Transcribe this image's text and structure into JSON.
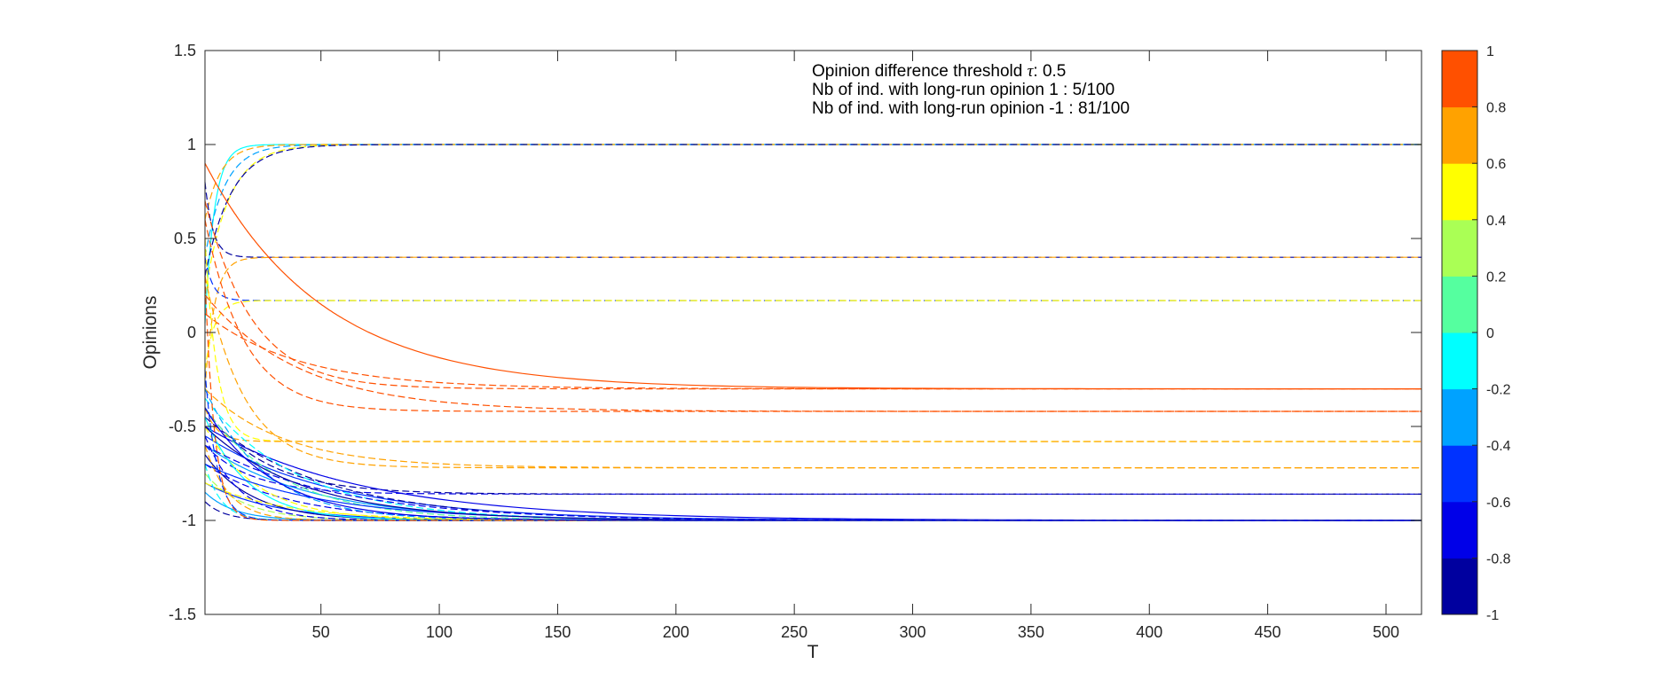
{
  "chart_data": {
    "type": "line",
    "xlabel": "T",
    "ylabel": "Opinions",
    "xlim": [
      1,
      515
    ],
    "ylim": [
      -1.5,
      1.5
    ],
    "xticks": [
      50,
      100,
      150,
      200,
      250,
      300,
      350,
      400,
      450,
      500
    ],
    "yticks": [
      -1.5,
      -1,
      -0.5,
      0,
      0.5,
      1,
      1.5
    ],
    "ytick_labels": [
      "-1.5",
      "-1",
      "-0.5",
      "0",
      "0.5",
      "1",
      "1.5"
    ],
    "annotations": {
      "threshold_prefix": "Opinion difference threshold ",
      "threshold_symbol": "τ",
      "threshold_suffix": ": 0.5",
      "line2": "Nb of ind. with long-run opinion 1 : 5/100",
      "line3": "Nb of ind. with long-run opinion -1 : 81/100"
    },
    "colorbar": {
      "range": [
        -1,
        1
      ],
      "tick_labels": [
        "1",
        "0.8",
        "0.6",
        "0.4",
        "0.2",
        "0",
        "-0.2",
        "-0.4",
        "-0.6",
        "-0.8",
        "-1"
      ],
      "colors": [
        "#00009f",
        "#0000e8",
        "#0032ff",
        "#00a2ff",
        "#00ffff",
        "#55ff9f",
        "#aaff55",
        "#ffff00",
        "#ffa200",
        "#ff5000"
      ]
    },
    "series": [
      {
        "start": 0.05,
        "end": 1.0,
        "rate": 0.25,
        "color": "#00ffff",
        "dash": false
      },
      {
        "start": 0.4,
        "end": 1.0,
        "rate": 0.12,
        "color": "#00a2ff",
        "dash": true
      },
      {
        "start": 0.2,
        "end": 1.0,
        "rate": 0.1,
        "color": "#ffff00",
        "dash": true
      },
      {
        "start": 0.6,
        "end": 1.0,
        "rate": 0.15,
        "color": "#ffa200",
        "dash": true
      },
      {
        "start": 0.3,
        "end": 1.0,
        "rate": 0.09,
        "color": "#00009f",
        "dash": true
      },
      {
        "start": 0.8,
        "end": 0.4,
        "rate": 0.3,
        "color": "#00009f",
        "dash": true
      },
      {
        "start": -0.3,
        "end": 0.4,
        "rate": 0.25,
        "color": "#ffa200",
        "dash": true
      },
      {
        "start": 0.4,
        "end": 0.17,
        "rate": 0.3,
        "color": "#0032ff",
        "dash": true
      },
      {
        "start": -0.2,
        "end": 0.17,
        "rate": 0.25,
        "color": "#ffff00",
        "dash": true
      },
      {
        "start": 0.9,
        "end": -0.3,
        "rate": 0.02,
        "color": "#ff5000",
        "dash": false
      },
      {
        "start": 0.1,
        "end": -0.3,
        "rate": 0.025,
        "color": "#ff5000",
        "dash": true
      },
      {
        "start": 0.7,
        "end": -0.3,
        "rate": 0.05,
        "color": "#ff5000",
        "dash": true
      },
      {
        "start": 0.2,
        "end": -0.42,
        "rate": 0.025,
        "color": "#ff5000",
        "dash": true
      },
      {
        "start": 0.6,
        "end": -0.42,
        "rate": 0.06,
        "color": "#ff5000",
        "dash": true
      },
      {
        "start": 0.5,
        "end": -0.58,
        "rate": 0.2,
        "color": "#ffff00",
        "dash": true
      },
      {
        "start": -0.4,
        "end": -0.58,
        "rate": 0.2,
        "color": "#ffa200",
        "dash": true
      },
      {
        "start": -0.3,
        "end": -0.72,
        "rate": 0.03,
        "color": "#ffa200",
        "dash": true
      },
      {
        "start": 0.3,
        "end": -0.72,
        "rate": 0.06,
        "color": "#ffa200",
        "dash": true
      },
      {
        "start": -0.6,
        "end": -0.86,
        "rate": 0.05,
        "color": "#0000e8",
        "dash": true
      },
      {
        "start": -0.4,
        "end": -0.86,
        "rate": 0.04,
        "color": "#00009f",
        "dash": true
      },
      {
        "start": -0.5,
        "end": -1.0,
        "rate": 0.015,
        "color": "#0000e8",
        "dash": false
      },
      {
        "start": -0.55,
        "end": -1.0,
        "rate": 0.018,
        "color": "#0032ff",
        "dash": false
      },
      {
        "start": -0.45,
        "end": -1.0,
        "rate": 0.02,
        "color": "#00009f",
        "dash": true
      },
      {
        "start": -0.6,
        "end": -1.0,
        "rate": 0.022,
        "color": "#00a2ff",
        "dash": false
      },
      {
        "start": -0.35,
        "end": -1.0,
        "rate": 0.025,
        "color": "#00ffff",
        "dash": true
      },
      {
        "start": -0.7,
        "end": -1.0,
        "rate": 0.028,
        "color": "#0000e8",
        "dash": true
      },
      {
        "start": -0.4,
        "end": -1.0,
        "rate": 0.03,
        "color": "#55ff9f",
        "dash": true
      },
      {
        "start": -0.8,
        "end": -1.0,
        "rate": 0.035,
        "color": "#0032ff",
        "dash": false
      },
      {
        "start": -0.3,
        "end": -1.0,
        "rate": 0.04,
        "color": "#00a2ff",
        "dash": true
      },
      {
        "start": -0.5,
        "end": -1.0,
        "rate": 0.045,
        "color": "#ffff00",
        "dash": true
      },
      {
        "start": -0.65,
        "end": -1.0,
        "rate": 0.05,
        "color": "#00009f",
        "dash": false
      },
      {
        "start": -0.45,
        "end": -1.0,
        "rate": 0.055,
        "color": "#00ffff",
        "dash": false
      },
      {
        "start": -0.75,
        "end": -1.0,
        "rate": 0.06,
        "color": "#aaff55",
        "dash": true
      },
      {
        "start": -0.55,
        "end": -1.0,
        "rate": 0.07,
        "color": "#0000e8",
        "dash": true
      },
      {
        "start": -0.85,
        "end": -1.0,
        "rate": 0.08,
        "color": "#00a2ff",
        "dash": false
      },
      {
        "start": -0.6,
        "end": -1.0,
        "rate": 0.1,
        "color": "#ffa200",
        "dash": true
      },
      {
        "start": -0.9,
        "end": -1.0,
        "rate": 0.12,
        "color": "#00009f",
        "dash": true
      },
      {
        "start": -0.7,
        "end": -1.0,
        "rate": 0.15,
        "color": "#00ffff",
        "dash": true
      },
      {
        "start": -0.2,
        "end": -1.0,
        "rate": 0.2,
        "color": "#0032ff",
        "dash": true
      },
      {
        "start": 0.3,
        "end": -1.0,
        "rate": 0.25,
        "color": "#ff5000",
        "dash": true
      },
      {
        "start": -0.6,
        "end": -1.0,
        "rate": 0.018,
        "color": "#0000e8",
        "dash": true
      },
      {
        "start": -0.7,
        "end": -1.0,
        "rate": 0.02,
        "color": "#0032ff",
        "dash": false
      },
      {
        "start": -0.5,
        "end": -1.0,
        "rate": 0.024,
        "color": "#00009f",
        "dash": false
      },
      {
        "start": -0.8,
        "end": -1.0,
        "rate": 0.03,
        "color": "#ffff00",
        "dash": true
      },
      {
        "start": -0.4,
        "end": -1.0,
        "rate": 0.035,
        "color": "#0000e8",
        "dash": false
      }
    ]
  }
}
